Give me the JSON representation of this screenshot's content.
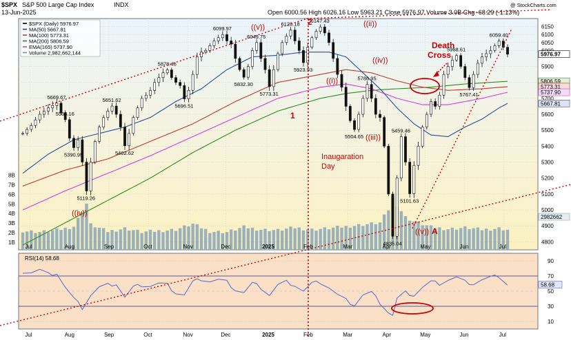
{
  "header": {
    "symbol": "$SPX",
    "name": "S&P 500 Large Cap Index",
    "exchange": "INDX",
    "date": "13-Jun-2025",
    "quote": "Open 6000.56  High 6026.16  Low 5963.21  Close 5976.97  Volume 3.0B  Chg -68.29 (-1.13%)",
    "watermark": "@ StockCharts.com"
  },
  "legend": [
    {
      "label": "$SPX (Daily) 5976.97",
      "color": "#000000"
    },
    {
      "label": "MA(50) 5667.81",
      "color": "#1f3b8c"
    },
    {
      "label": "MA(100) 5773.31",
      "color": "#c0392b"
    },
    {
      "label": "MA(200) 5806.59",
      "color": "#2e7d1e"
    },
    {
      "label": "EMA(165) 5737.90",
      "color": "#d63be0"
    },
    {
      "label": "Volume 2,982,662,144",
      "color": "#6a8fa8"
    }
  ],
  "rsi_label": "RSI(14) 58.68",
  "colors": {
    "price_bg_top": "#eaf4fb",
    "price_bg_bottom": "#fbf3c4",
    "rsi_bg": "#fbe0c8",
    "candle": "#111111",
    "volume": "#8aa6b8",
    "ma50": "#2c4d9a",
    "ma100": "#c0392b",
    "ma200": "#2e8b1e",
    "ema165": "#d63be0",
    "rsi_line": "#5a67c8",
    "annotation": "#cc0000"
  },
  "chart_data": {
    "type": "line",
    "months": [
      "Jul",
      "Aug",
      "Sep",
      "Oct",
      "Nov",
      "Dec",
      "2025",
      "Feb",
      "Mar",
      "Apr",
      "May",
      "Jun",
      "Jul"
    ],
    "y_ticks": [
      4800,
      4900,
      5000,
      5100,
      5200,
      5300,
      5400,
      5500,
      5600,
      5700,
      5800,
      5900,
      6000,
      6050,
      6100,
      6150
    ],
    "ylim": [
      4750,
      6200
    ],
    "volume_ticks": [
      "1B",
      "2B",
      "3B",
      "4B",
      "5B",
      "6B",
      "7B",
      "8B"
    ],
    "rsi_ticks": [
      10,
      30,
      50,
      70,
      90
    ],
    "price_labels": [
      "5669.67",
      "5566.16",
      "5390.95",
      "5119.26",
      "5651.62",
      "5402.62",
      "5878.46",
      "5696.51",
      "6099.97",
      "5832.30",
      "6049.75",
      "5773.31",
      "6128.18",
      "5923.93",
      "6147.43",
      "5786.95",
      "5504.65",
      "5459.46",
      "4835.04",
      "5101.63",
      "5968.61",
      "5767.41",
      "6059.40"
    ],
    "last_values": {
      "price": "5976.97",
      "ma200": "5806.59",
      "ma100": "5773.31",
      "ema165": "5737.90",
      "ma50": "5667.81",
      "volume": "2982662",
      "rsi": "58.68"
    },
    "annotations": {
      "wave_iv_low": "((iv))",
      "wave_v": "((v))",
      "wave_ii": "((ii))",
      "wave_i": "((i))",
      "wave_iv": "((iv))",
      "wave_iii": "((iii))",
      "wave_end": "((v))",
      "wave_a": "A",
      "wave_2": "2",
      "wave_1": "1",
      "inauguration": [
        "Inaugaration",
        "Day"
      ],
      "death_cross": [
        "Death",
        "Cross"
      ]
    },
    "series": [
      {
        "name": "$SPX (Daily)",
        "points": [
          [
            0,
            5480
          ],
          [
            2,
            5530
          ],
          [
            4,
            5600
          ],
          [
            6,
            5640
          ],
          [
            8,
            5669.67
          ],
          [
            9,
            5610
          ],
          [
            10,
            5566.16
          ],
          [
            11,
            5450
          ],
          [
            12,
            5390.95
          ],
          [
            13,
            5440
          ],
          [
            14,
            5300
          ],
          [
            15,
            5119.26
          ],
          [
            16,
            5300
          ],
          [
            17,
            5430
          ],
          [
            18,
            5520
          ],
          [
            19,
            5580
          ],
          [
            20,
            5620
          ],
          [
            21,
            5651.62
          ],
          [
            22,
            5600
          ],
          [
            23,
            5520
          ],
          [
            24,
            5402.62
          ],
          [
            25,
            5480
          ],
          [
            26,
            5580
          ],
          [
            27,
            5640
          ],
          [
            28,
            5700
          ],
          [
            29,
            5720
          ],
          [
            30,
            5750
          ],
          [
            31,
            5800
          ],
          [
            32,
            5830
          ],
          [
            33,
            5860
          ],
          [
            34,
            5878.46
          ],
          [
            35,
            5830
          ],
          [
            36,
            5800
          ],
          [
            37,
            5780
          ],
          [
            38,
            5696.51
          ],
          [
            39,
            5750
          ],
          [
            40,
            5850
          ],
          [
            41,
            5960
          ],
          [
            42,
            5990
          ],
          [
            43,
            6000
          ],
          [
            44,
            6030
          ],
          [
            45,
            6060
          ],
          [
            46,
            6080
          ],
          [
            47,
            6099.97
          ],
          [
            48,
            6060
          ],
          [
            49,
            6040
          ],
          [
            50,
            5950
          ],
          [
            51,
            5880
          ],
          [
            52,
            5832.3
          ],
          [
            53,
            5900
          ],
          [
            54,
            6000
          ],
          [
            55,
            6049.75
          ],
          [
            56,
            5950
          ],
          [
            57,
            5880
          ],
          [
            58,
            5773.31
          ],
          [
            59,
            5880
          ],
          [
            60,
            5980
          ],
          [
            61,
            6050
          ],
          [
            62,
            6090
          ],
          [
            63,
            6128.18
          ],
          [
            64,
            6060
          ],
          [
            65,
            6000
          ],
          [
            66,
            5923.93
          ],
          [
            67,
            6020
          ],
          [
            68,
            6080
          ],
          [
            69,
            6120
          ],
          [
            70,
            6147.43
          ],
          [
            71,
            6110
          ],
          [
            72,
            6050
          ],
          [
            73,
            5950
          ],
          [
            74,
            5850
          ],
          [
            75,
            5770
          ],
          [
            76,
            5650
          ],
          [
            77,
            5560
          ],
          [
            78,
            5504.65
          ],
          [
            79,
            5600
          ],
          [
            80,
            5700
          ],
          [
            81,
            5786.95
          ],
          [
            82,
            5700
          ],
          [
            83,
            5600
          ],
          [
            84,
            5580
          ],
          [
            85,
            5400
          ],
          [
            86,
            5100
          ],
          [
            87,
            4835.04
          ],
          [
            88,
            5200
          ],
          [
            89,
            5459.46
          ],
          [
            90,
            5300
          ],
          [
            91,
            5101.63
          ],
          [
            92,
            5280
          ],
          [
            93,
            5400
          ],
          [
            94,
            5520
          ],
          [
            95,
            5600
          ],
          [
            96,
            5680
          ],
          [
            97,
            5650
          ],
          [
            98,
            5720
          ],
          [
            99,
            5850
          ],
          [
            100,
            5900
          ],
          [
            101,
            5940
          ],
          [
            102,
            5968.61
          ],
          [
            103,
            5900
          ],
          [
            104,
            5830
          ],
          [
            105,
            5767.41
          ],
          [
            106,
            5850
          ],
          [
            107,
            5920
          ],
          [
            108,
            5960
          ],
          [
            109,
            5980
          ],
          [
            110,
            6000
          ],
          [
            111,
            6030
          ],
          [
            112,
            6059.4
          ],
          [
            113,
            6020
          ],
          [
            114,
            5976.97
          ]
        ]
      },
      {
        "name": "MA(50)",
        "points": [
          [
            0,
            5230
          ],
          [
            6,
            5350
          ],
          [
            12,
            5440
          ],
          [
            18,
            5480
          ],
          [
            24,
            5520
          ],
          [
            30,
            5580
          ],
          [
            36,
            5680
          ],
          [
            42,
            5760
          ],
          [
            48,
            5880
          ],
          [
            54,
            5960
          ],
          [
            60,
            5970
          ],
          [
            66,
            5990
          ],
          [
            72,
            5990
          ],
          [
            76,
            5960
          ],
          [
            80,
            5860
          ],
          [
            84,
            5760
          ],
          [
            88,
            5640
          ],
          [
            92,
            5540
          ],
          [
            96,
            5470
          ],
          [
            100,
            5460
          ],
          [
            104,
            5520
          ],
          [
            108,
            5570
          ],
          [
            112,
            5640
          ],
          [
            114,
            5667.81
          ]
        ]
      },
      {
        "name": "MA(100)",
        "points": [
          [
            0,
            5150
          ],
          [
            10,
            5250
          ],
          [
            20,
            5320
          ],
          [
            30,
            5430
          ],
          [
            40,
            5540
          ],
          [
            50,
            5680
          ],
          [
            60,
            5800
          ],
          [
            70,
            5850
          ],
          [
            76,
            5880
          ],
          [
            82,
            5860
          ],
          [
            88,
            5810
          ],
          [
            94,
            5770
          ],
          [
            100,
            5750
          ],
          [
            108,
            5760
          ],
          [
            114,
            5773.31
          ]
        ]
      },
      {
        "name": "MA(200)",
        "points": [
          [
            0,
            4780
          ],
          [
            10,
            4920
          ],
          [
            20,
            5060
          ],
          [
            30,
            5200
          ],
          [
            40,
            5360
          ],
          [
            50,
            5500
          ],
          [
            60,
            5620
          ],
          [
            70,
            5700
          ],
          [
            76,
            5730
          ],
          [
            82,
            5750
          ],
          [
            88,
            5760
          ],
          [
            96,
            5770
          ],
          [
            104,
            5790
          ],
          [
            114,
            5806.59
          ]
        ]
      },
      {
        "name": "EMA(165)",
        "points": [
          [
            0,
            5000
          ],
          [
            10,
            5120
          ],
          [
            20,
            5230
          ],
          [
            30,
            5340
          ],
          [
            40,
            5460
          ],
          [
            50,
            5580
          ],
          [
            60,
            5700
          ],
          [
            70,
            5770
          ],
          [
            76,
            5790
          ],
          [
            82,
            5760
          ],
          [
            88,
            5700
          ],
          [
            94,
            5660
          ],
          [
            100,
            5660
          ],
          [
            108,
            5700
          ],
          [
            114,
            5737.9
          ]
        ]
      },
      {
        "name": "RSI(14)",
        "points": [
          [
            0,
            76
          ],
          [
            2,
            75
          ],
          [
            4,
            78
          ],
          [
            6,
            72
          ],
          [
            8,
            74
          ],
          [
            10,
            55
          ],
          [
            12,
            40
          ],
          [
            14,
            28
          ],
          [
            16,
            45
          ],
          [
            18,
            55
          ],
          [
            20,
            58
          ],
          [
            22,
            60
          ],
          [
            24,
            42
          ],
          [
            26,
            55
          ],
          [
            28,
            58
          ],
          [
            30,
            57
          ],
          [
            32,
            60
          ],
          [
            34,
            58
          ],
          [
            36,
            48
          ],
          [
            38,
            45
          ],
          [
            40,
            62
          ],
          [
            42,
            66
          ],
          [
            44,
            63
          ],
          [
            46,
            65
          ],
          [
            48,
            62
          ],
          [
            50,
            52
          ],
          [
            52,
            48
          ],
          [
            54,
            60
          ],
          [
            56,
            55
          ],
          [
            58,
            45
          ],
          [
            60,
            58
          ],
          [
            62,
            62
          ],
          [
            64,
            58
          ],
          [
            66,
            50
          ],
          [
            68,
            60
          ],
          [
            70,
            62
          ],
          [
            72,
            55
          ],
          [
            74,
            45
          ],
          [
            76,
            38
          ],
          [
            78,
            32
          ],
          [
            80,
            45
          ],
          [
            82,
            48
          ],
          [
            84,
            35
          ],
          [
            86,
            22
          ],
          [
            87,
            18
          ],
          [
            88,
            40
          ],
          [
            90,
            48
          ],
          [
            92,
            45
          ],
          [
            94,
            55
          ],
          [
            96,
            62
          ],
          [
            98,
            60
          ],
          [
            100,
            65
          ],
          [
            102,
            68
          ],
          [
            104,
            62
          ],
          [
            106,
            60
          ],
          [
            108,
            65
          ],
          [
            110,
            68
          ],
          [
            112,
            70
          ],
          [
            114,
            58.68
          ]
        ]
      },
      {
        "name": "Volume",
        "points": [
          [
            0,
            2.8
          ],
          [
            4,
            2.6
          ],
          [
            8,
            2.9
          ],
          [
            12,
            3.5
          ],
          [
            15,
            7.2
          ],
          [
            16,
            3.8
          ],
          [
            20,
            2.7
          ],
          [
            24,
            3.2
          ],
          [
            28,
            2.6
          ],
          [
            32,
            2.8
          ],
          [
            36,
            3.0
          ],
          [
            40,
            3.9
          ],
          [
            44,
            2.7
          ],
          [
            48,
            2.6
          ],
          [
            52,
            3.4
          ],
          [
            56,
            3.0
          ],
          [
            60,
            2.9
          ],
          [
            64,
            3.3
          ],
          [
            68,
            3.0
          ],
          [
            72,
            3.2
          ],
          [
            76,
            3.5
          ],
          [
            80,
            3.8
          ],
          [
            84,
            4.1
          ],
          [
            86,
            6.2
          ],
          [
            87,
            8.2
          ],
          [
            88,
            7.0
          ],
          [
            90,
            5.0
          ],
          [
            92,
            4.3
          ],
          [
            96,
            3.4
          ],
          [
            100,
            3.1
          ],
          [
            104,
            3.3
          ],
          [
            108,
            3.0
          ],
          [
            112,
            3.2
          ],
          [
            114,
            2.98
          ]
        ]
      }
    ]
  }
}
